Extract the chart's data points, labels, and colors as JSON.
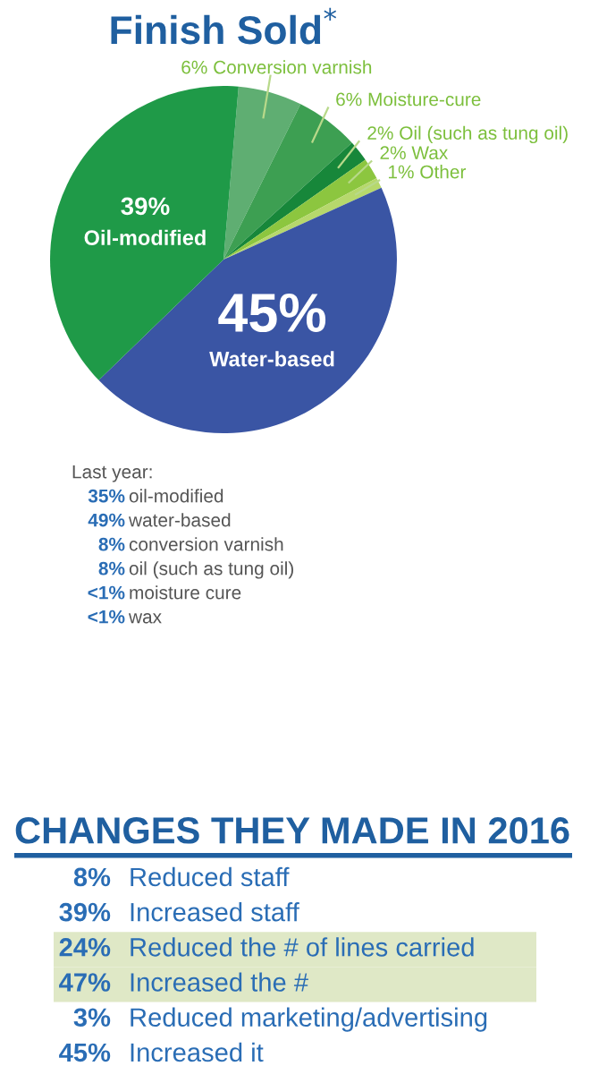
{
  "chart_data": [
    {
      "type": "pie",
      "title": "Finish Sold$^{*}$",
      "categories": [
        "Conversion varnish",
        "Moisture-cure",
        "Oil (such as tung oil)",
        "Wax",
        "Other",
        "Water-based",
        "Oil-modified"
      ],
      "values": [
        6,
        6,
        2,
        2,
        1,
        45,
        39
      ],
      "value_labels": [
        "6%",
        "6%",
        "2%",
        "2%",
        "1%",
        "45%",
        "39%"
      ],
      "colors": [
        "#5fae72",
        "#3d9f52",
        "#17873a",
        "#8cc63f",
        "#b6d86c",
        "#3a55a4",
        "#1f9a48"
      ]
    },
    {
      "type": "other",
      "title": "Last year:",
      "categories": [
        "oil-modified",
        "water-based",
        "conversion varnish",
        "oil (such as tung oil)",
        "moisture cure",
        "wax"
      ],
      "value_labels": [
        "35%",
        "49%",
        "8%",
        "8%",
        "<1%",
        "<1%"
      ]
    },
    {
      "type": "other",
      "title": "CHANGES THEY MADE IN 2016",
      "categories": [
        "Reduced staff",
        "Increased staff",
        "Reduced the # of lines carried",
        "Increased the #",
        "Reduced marketing/advertising",
        "Increased it"
      ],
      "value_labels": [
        "8%",
        "39%",
        "24%",
        "47%",
        "3%",
        "45%"
      ],
      "colors": [
        null,
        null,
        "#dfe8c6",
        "#dfe8c6",
        null,
        null
      ]
    }
  ]
}
